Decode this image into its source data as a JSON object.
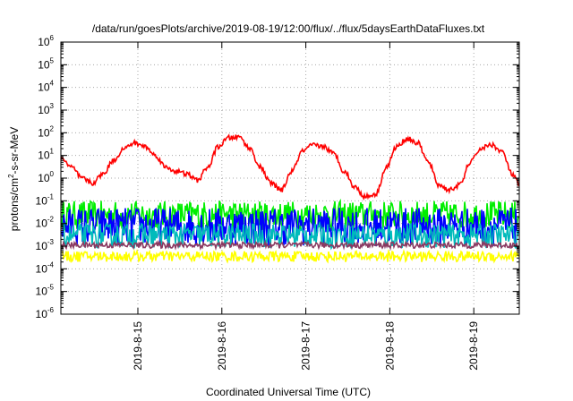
{
  "chart_data": {
    "type": "line",
    "title": "/data/run/goesPlots/archive/2019-08-19/12:00/flux/../flux/5daysEarthDataFluxes.txt",
    "xlabel": "Coordinated Universal Time (UTC)",
    "ylabel": "protons/cm2-s-sr-MeV",
    "ylabel_parts": {
      "pre": "protons/cm",
      "sup": "2",
      "post": "-s-sr-MeV"
    },
    "y_scale": "log",
    "ylim_exponents": [
      -6,
      6
    ],
    "y_ticks": [
      {
        "base": "10",
        "exp": "-6"
      },
      {
        "base": "10",
        "exp": "-5"
      },
      {
        "base": "10",
        "exp": "-4"
      },
      {
        "base": "10",
        "exp": "-3"
      },
      {
        "base": "10",
        "exp": "-2"
      },
      {
        "base": "10",
        "exp": "-1"
      },
      {
        "base": "10",
        "exp": "0"
      },
      {
        "base": "10",
        "exp": "1"
      },
      {
        "base": "10",
        "exp": "2"
      },
      {
        "base": "10",
        "exp": "3"
      },
      {
        "base": "10",
        "exp": "4"
      },
      {
        "base": "10",
        "exp": "5"
      },
      {
        "base": "10",
        "exp": "6"
      }
    ],
    "xlim": [
      "2019-08-14 02:00",
      "2019-08-19 13:00"
    ],
    "x_ticks": [
      "2019-8-15",
      "2019-8-16",
      "2019-8-17",
      "2019-8-18",
      "2019-8-19"
    ],
    "grid": true,
    "legend": "none",
    "series": [
      {
        "color": "#ff0000",
        "x": [
          "2019-08-14 02:00",
          "2019-08-14 05:00",
          "2019-08-14 08:00",
          "2019-08-14 11:00",
          "2019-08-14 14:00",
          "2019-08-14 17:00",
          "2019-08-14 20:00",
          "2019-08-14 23:00",
          "2019-08-15 02:00",
          "2019-08-15 05:00",
          "2019-08-15 08:00",
          "2019-08-15 11:00",
          "2019-08-15 14:00",
          "2019-08-15 17:00",
          "2019-08-15 20:00",
          "2019-08-15 23:00",
          "2019-08-16 02:00",
          "2019-08-16 05:00",
          "2019-08-16 08:00",
          "2019-08-16 11:00",
          "2019-08-16 14:00",
          "2019-08-16 17:00",
          "2019-08-16 20:00",
          "2019-08-16 23:00",
          "2019-08-17 02:00",
          "2019-08-17 05:00",
          "2019-08-17 08:00",
          "2019-08-17 11:00",
          "2019-08-17 14:00",
          "2019-08-17 17:00",
          "2019-08-17 20:00",
          "2019-08-17 23:00",
          "2019-08-18 02:00",
          "2019-08-18 05:00",
          "2019-08-18 08:00",
          "2019-08-18 11:00",
          "2019-08-18 14:00",
          "2019-08-18 17:00",
          "2019-08-18 20:00",
          "2019-08-18 23:00",
          "2019-08-19 02:00",
          "2019-08-19 05:00",
          "2019-08-19 08:00",
          "2019-08-19 11:00",
          "2019-08-19 13:00"
        ],
        "values": [
          8,
          3,
          1,
          0.6,
          1.5,
          6,
          20,
          35,
          25,
          10,
          3,
          2,
          1.5,
          0.8,
          3,
          25,
          60,
          65,
          20,
          3,
          0.6,
          0.3,
          2,
          15,
          28,
          25,
          12,
          2,
          0.4,
          0.15,
          0.2,
          3,
          25,
          55,
          35,
          5,
          0.5,
          0.3,
          0.5,
          5,
          20,
          30,
          15,
          1.5,
          0.5
        ]
      },
      {
        "color": "#00ee00",
        "band": [
          0.005,
          0.1
        ]
      },
      {
        "color": "#0000ff",
        "band": [
          0.001,
          0.05
        ]
      },
      {
        "color": "#00bbbb",
        "band": [
          0.0008,
          0.01
        ]
      },
      {
        "color": "#8b3a62",
        "band": [
          0.0008,
          0.0015
        ]
      },
      {
        "color": "#ffff00",
        "band": [
          0.0002,
          0.0006
        ]
      }
    ]
  }
}
